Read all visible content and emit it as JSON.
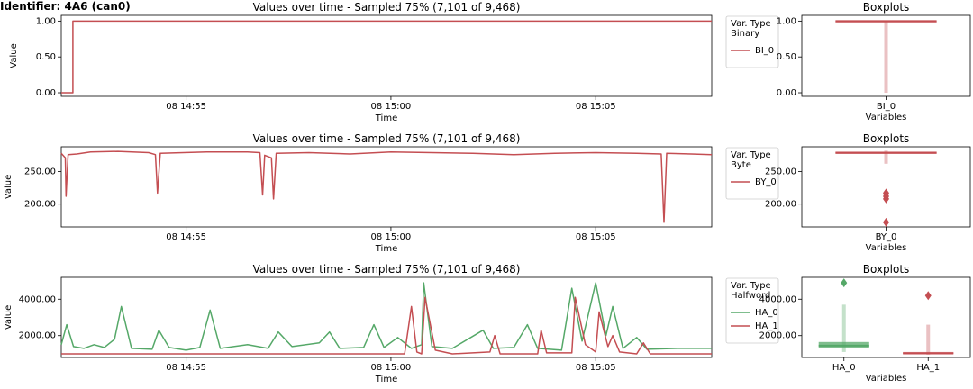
{
  "figure_title": "Identifier: 4A6 (can0)",
  "chart_data": [
    {
      "type": "line",
      "title": "Values over time - Sampled 75% (7,101 of 9,468)",
      "xlabel": "Time",
      "ylabel": "Value",
      "x_ticks": [
        "08 14:55",
        "08 15:00",
        "08 15:05"
      ],
      "x_range": [
        "08 14:51:57",
        "08 15:07:50"
      ],
      "ylim": [
        -0.05,
        1.08
      ],
      "y_ticks": [
        "0.00",
        "0.50",
        "1.00"
      ],
      "legend": {
        "title": "Var. Type\nBinary",
        "placement": "right"
      },
      "series": [
        {
          "name": "BI_0",
          "color": "#c44e52",
          "points": [
            [
              "08 14:51:57",
              0
            ],
            [
              "08 14:52:14",
              0
            ],
            [
              "08 14:52:14",
              1
            ],
            [
              "08 15:07:50",
              1
            ]
          ]
        }
      ],
      "boxplot": {
        "title": "Boxplots",
        "xlabel": "Variables",
        "ylim": [
          -0.05,
          1.08
        ],
        "y_ticks": [
          "0.00",
          "0.50",
          "1.00"
        ],
        "boxes": [
          {
            "name": "BI_0",
            "color": "#c44e52",
            "median": 1,
            "q1": 1,
            "q3": 1,
            "min": 0,
            "max": 1,
            "outliers": []
          }
        ]
      }
    },
    {
      "type": "line",
      "title": "Values over time - Sampled 75% (7,101 of 9,468)",
      "xlabel": "Time",
      "ylabel": "Value",
      "x_ticks": [
        "08 14:55",
        "08 15:00",
        "08 15:05"
      ],
      "x_range": [
        "08 14:51:57",
        "08 15:07:50"
      ],
      "ylim": [
        165,
        288
      ],
      "y_ticks": [
        "200.00",
        "250.00"
      ],
      "legend": {
        "title": "Var. Type\nByte",
        "placement": "right"
      },
      "series": [
        {
          "name": "BY_0",
          "color": "#c44e52",
          "points": [
            [
              "08 14:51:57",
              278
            ],
            [
              "08 14:52:03",
              271
            ],
            [
              "08 14:52:04",
              212
            ],
            [
              "08 14:52:07",
              276
            ],
            [
              "08 14:52:20",
              277
            ],
            [
              "08 14:52:40",
              280
            ],
            [
              "08 14:53:20",
              281
            ],
            [
              "08 14:54:05",
              279
            ],
            [
              "08 14:54:15",
              276
            ],
            [
              "08 14:54:18",
              217
            ],
            [
              "08 14:54:22",
              278
            ],
            [
              "08 14:55:30",
              280
            ],
            [
              "08 14:56:30",
              280
            ],
            [
              "08 14:56:48",
              279
            ],
            [
              "08 14:56:52",
              214
            ],
            [
              "08 14:56:55",
              275
            ],
            [
              "08 14:57:05",
              271
            ],
            [
              "08 14:57:08",
              208
            ],
            [
              "08 14:57:12",
              278
            ],
            [
              "08 14:58:00",
              279
            ],
            [
              "08 14:59:00",
              277
            ],
            [
              "08 15:00:00",
              280
            ],
            [
              "08 15:01:00",
              279
            ],
            [
              "08 15:02:00",
              278
            ],
            [
              "08 15:03:00",
              276
            ],
            [
              "08 15:04:00",
              278
            ],
            [
              "08 15:05:00",
              279
            ],
            [
              "08 15:06:00",
              278
            ],
            [
              "08 15:06:36",
              277
            ],
            [
              "08 15:06:40",
              172
            ],
            [
              "08 15:06:44",
              278
            ],
            [
              "08 15:07:20",
              277
            ],
            [
              "08 15:07:50",
              276
            ]
          ]
        }
      ],
      "boxplot": {
        "title": "Boxplots",
        "xlabel": "Variables",
        "ylim": [
          165,
          288
        ],
        "y_ticks": [
          "200.00",
          "250.00"
        ],
        "boxes": [
          {
            "name": "BY_0",
            "color": "#c44e52",
            "median": 279,
            "q1": 277,
            "q3": 280,
            "min": 262,
            "max": 282,
            "outliers": [
              217,
              212,
              208,
              172
            ]
          }
        ]
      }
    },
    {
      "type": "line",
      "title": "Values over time - Sampled 75% (7,101 of 9,468)",
      "xlabel": "Time",
      "ylabel": "Value",
      "x_ticks": [
        "08 14:55",
        "08 15:00",
        "08 15:05"
      ],
      "x_range": [
        "08 14:51:57",
        "08 15:07:50"
      ],
      "ylim": [
        800,
        5200
      ],
      "y_ticks": [
        "2000.00",
        "4000.00"
      ],
      "legend": {
        "title": "Var. Type\nHalfword",
        "placement": "right"
      },
      "series": [
        {
          "name": "HA_0",
          "color": "#55a868",
          "points": [
            [
              "08 14:51:57",
              1500
            ],
            [
              "08 14:52:05",
              2600
            ],
            [
              "08 14:52:15",
              1400
            ],
            [
              "08 14:52:30",
              1300
            ],
            [
              "08 14:52:45",
              1500
            ],
            [
              "08 14:53:00",
              1350
            ],
            [
              "08 14:53:15",
              1800
            ],
            [
              "08 14:53:25",
              3600
            ],
            [
              "08 14:53:40",
              1300
            ],
            [
              "08 14:54:10",
              1250
            ],
            [
              "08 14:54:20",
              2300
            ],
            [
              "08 14:54:35",
              1350
            ],
            [
              "08 14:55:00",
              1200
            ],
            [
              "08 14:55:20",
              1350
            ],
            [
              "08 14:55:35",
              3400
            ],
            [
              "08 14:55:50",
              1300
            ],
            [
              "08 14:56:30",
              1500
            ],
            [
              "08 14:57:00",
              1300
            ],
            [
              "08 14:57:15",
              2200
            ],
            [
              "08 14:57:35",
              1400
            ],
            [
              "08 14:58:15",
              1600
            ],
            [
              "08 14:58:30",
              2200
            ],
            [
              "08 14:58:45",
              1300
            ],
            [
              "08 14:59:20",
              1350
            ],
            [
              "08 14:59:35",
              2600
            ],
            [
              "08 14:59:50",
              1350
            ],
            [
              "08 15:00:10",
              1900
            ],
            [
              "08 15:00:30",
              1300
            ],
            [
              "08 15:00:45",
              1500
            ],
            [
              "08 15:00:48",
              4900
            ],
            [
              "08 15:01:00",
              1400
            ],
            [
              "08 15:01:30",
              1300
            ],
            [
              "08 15:02:15",
              2300
            ],
            [
              "08 15:02:30",
              1300
            ],
            [
              "08 15:03:00",
              1350
            ],
            [
              "08 15:03:20",
              2600
            ],
            [
              "08 15:03:35",
              1300
            ],
            [
              "08 15:04:10",
              1200
            ],
            [
              "08 15:04:25",
              4600
            ],
            [
              "08 15:04:40",
              1700
            ],
            [
              "08 15:05:00",
              4900
            ],
            [
              "08 15:05:15",
              2000
            ],
            [
              "08 15:05:25",
              3600
            ],
            [
              "08 15:05:40",
              1300
            ],
            [
              "08 15:06:00",
              1900
            ],
            [
              "08 15:06:15",
              1250
            ],
            [
              "08 15:07:00",
              1300
            ],
            [
              "08 15:07:50",
              1300
            ]
          ]
        },
        {
          "name": "HA_1",
          "color": "#c44e52",
          "points": [
            [
              "08 14:51:57",
              1000
            ],
            [
              "08 15:00:20",
              1000
            ],
            [
              "08 15:00:30",
              3600
            ],
            [
              "08 15:00:38",
              1100
            ],
            [
              "08 15:00:45",
              1000
            ],
            [
              "08 15:00:50",
              4100
            ],
            [
              "08 15:01:05",
              1200
            ],
            [
              "08 15:01:30",
              1000
            ],
            [
              "08 15:02:25",
              1100
            ],
            [
              "08 15:02:32",
              2000
            ],
            [
              "08 15:02:40",
              1000
            ],
            [
              "08 15:03:35",
              1000
            ],
            [
              "08 15:03:40",
              2300
            ],
            [
              "08 15:03:48",
              1050
            ],
            [
              "08 15:04:25",
              1050
            ],
            [
              "08 15:04:30",
              4100
            ],
            [
              "08 15:04:45",
              1500
            ],
            [
              "08 15:05:00",
              1100
            ],
            [
              "08 15:05:05",
              3300
            ],
            [
              "08 15:05:18",
              1400
            ],
            [
              "08 15:05:25",
              2000
            ],
            [
              "08 15:05:35",
              1100
            ],
            [
              "08 15:06:00",
              1000
            ],
            [
              "08 15:06:10",
              1600
            ],
            [
              "08 15:06:20",
              1000
            ],
            [
              "08 15:07:50",
              1000
            ]
          ]
        }
      ],
      "boxplot": {
        "title": "Boxplots",
        "xlabel": "Variables",
        "ylim": [
          800,
          5200
        ],
        "y_ticks": [
          "2000.00",
          "4000.00"
        ],
        "boxes": [
          {
            "name": "HA_0",
            "color": "#55a868",
            "median": 1450,
            "q1": 1300,
            "q3": 1650,
            "min": 1100,
            "max": 3700,
            "outliers": [
              4900
            ]
          },
          {
            "name": "HA_1",
            "color": "#c44e52",
            "median": 1020,
            "q1": 1000,
            "q3": 1100,
            "min": 950,
            "max": 2600,
            "outliers": [
              4200
            ]
          }
        ]
      }
    }
  ]
}
